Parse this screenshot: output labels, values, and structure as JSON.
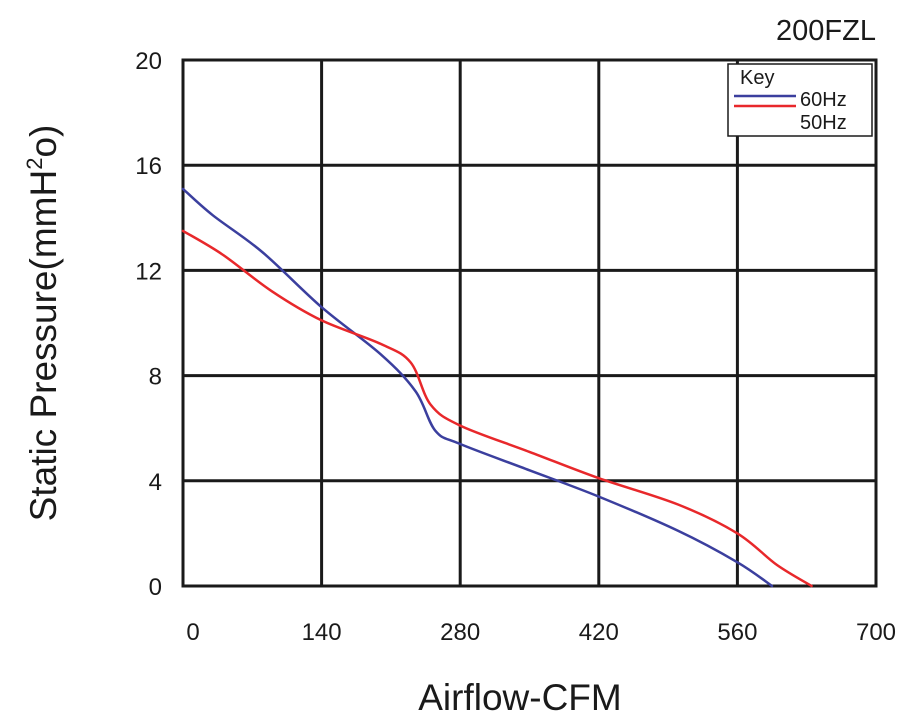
{
  "chart_data": {
    "type": "line",
    "title": "200FZL",
    "xlabel": "Airflow-CFM",
    "ylabel_main": "Static Pressure(mmH",
    "ylabel_sup": "2",
    "ylabel_tail": "o)",
    "xlim": [
      0,
      700
    ],
    "ylim": [
      0,
      20
    ],
    "xticks": [
      "0",
      "140",
      "280",
      "420",
      "560",
      "700"
    ],
    "yticks": [
      "0",
      "4",
      "8",
      "12",
      "16",
      "20"
    ],
    "grid": true,
    "legend": {
      "title": "Key",
      "position": "top-right"
    },
    "series": [
      {
        "name": "60Hz",
        "color": "#3b3f9e",
        "points": [
          [
            0,
            15.1
          ],
          [
            30,
            14.1
          ],
          [
            80,
            12.7
          ],
          [
            140,
            10.6
          ],
          [
            200,
            8.8
          ],
          [
            235,
            7.4
          ],
          [
            255,
            5.9
          ],
          [
            280,
            5.4
          ],
          [
            350,
            4.4
          ],
          [
            420,
            3.4
          ],
          [
            500,
            2.1
          ],
          [
            560,
            0.9
          ],
          [
            595,
            0
          ]
        ]
      },
      {
        "name": "50Hz",
        "color": "#e8282b",
        "points": [
          [
            0,
            13.5
          ],
          [
            40,
            12.6
          ],
          [
            90,
            11.2
          ],
          [
            140,
            10.1
          ],
          [
            200,
            9.2
          ],
          [
            230,
            8.5
          ],
          [
            250,
            6.9
          ],
          [
            280,
            6.1
          ],
          [
            350,
            5.1
          ],
          [
            420,
            4.1
          ],
          [
            500,
            3.1
          ],
          [
            560,
            2.0
          ],
          [
            600,
            0.8
          ],
          [
            635,
            0
          ]
        ]
      }
    ]
  }
}
